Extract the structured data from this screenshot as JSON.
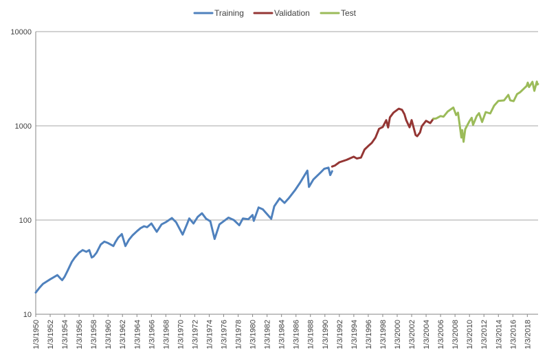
{
  "chart_data": {
    "type": "line",
    "y_scale": "log",
    "ylim": [
      10,
      10000
    ],
    "y_ticks": [
      "10",
      "100",
      "1000",
      "10000"
    ],
    "x_ticks": [
      "1/3/1950",
      "1/3/1952",
      "1/3/1954",
      "1/3/1956",
      "1/3/1958",
      "1/3/1960",
      "1/3/1962",
      "1/3/1964",
      "1/3/1966",
      "1/3/1968",
      "1/3/1970",
      "1/3/1972",
      "1/3/1974",
      "1/3/1976",
      "1/3/1978",
      "1/3/1980",
      "1/3/1982",
      "1/3/1984",
      "1/3/1986",
      "1/3/1988",
      "1/3/1990",
      "1/3/1992",
      "1/3/1994",
      "1/3/1996",
      "1/3/1998",
      "1/3/2000",
      "1/3/2002",
      "1/3/2004",
      "1/3/2006",
      "1/3/2008",
      "1/3/2010",
      "1/3/2012",
      "1/3/2014",
      "1/3/2016",
      "1/3/2018"
    ],
    "xlim": [
      "1950-01-03",
      "2019-06-30"
    ],
    "grid": "horizontal",
    "legend_position": "top-center",
    "series": [
      {
        "name": "Training",
        "color": "#4F81BD",
        "points": [
          [
            "1950-01-03",
            17
          ],
          [
            "1950-07-01",
            19
          ],
          [
            "1951-01-01",
            21
          ],
          [
            "1951-06-01",
            22
          ],
          [
            "1952-01-01",
            23.5
          ],
          [
            "1952-06-01",
            24.5
          ],
          [
            "1953-01-01",
            26
          ],
          [
            "1953-06-01",
            24
          ],
          [
            "1953-09-01",
            23
          ],
          [
            "1954-01-01",
            25
          ],
          [
            "1954-06-01",
            29
          ],
          [
            "1955-01-01",
            36
          ],
          [
            "1955-06-01",
            40
          ],
          [
            "1956-01-01",
            45
          ],
          [
            "1956-07-01",
            48
          ],
          [
            "1957-01-01",
            46
          ],
          [
            "1957-06-01",
            48
          ],
          [
            "1957-10-01",
            40
          ],
          [
            "1958-01-01",
            41
          ],
          [
            "1958-06-01",
            45
          ],
          [
            "1959-01-01",
            55
          ],
          [
            "1959-07-01",
            59
          ],
          [
            "1960-01-01",
            57
          ],
          [
            "1960-10-01",
            53
          ],
          [
            "1961-01-01",
            58
          ],
          [
            "1961-06-01",
            65
          ],
          [
            "1961-12-01",
            71
          ],
          [
            "1962-06-01",
            53
          ],
          [
            "1962-12-01",
            62
          ],
          [
            "1963-06-01",
            69
          ],
          [
            "1964-01-01",
            76
          ],
          [
            "1964-07-01",
            82
          ],
          [
            "1965-01-01",
            86
          ],
          [
            "1965-06-01",
            84
          ],
          [
            "1966-01-01",
            92
          ],
          [
            "1966-10-01",
            75
          ],
          [
            "1967-06-01",
            90
          ],
          [
            "1968-01-01",
            95
          ],
          [
            "1968-11-01",
            105
          ],
          [
            "1969-06-01",
            95
          ],
          [
            "1970-05-01",
            70
          ],
          [
            "1970-12-01",
            90
          ],
          [
            "1971-04-01",
            104
          ],
          [
            "1971-11-01",
            92
          ],
          [
            "1972-06-01",
            108
          ],
          [
            "1973-01-01",
            118
          ],
          [
            "1973-08-01",
            103
          ],
          [
            "1974-03-01",
            97
          ],
          [
            "1974-10-01",
            63
          ],
          [
            "1975-06-01",
            90
          ],
          [
            "1976-01-01",
            97
          ],
          [
            "1976-09-01",
            106
          ],
          [
            "1977-06-01",
            100
          ],
          [
            "1978-03-01",
            88
          ],
          [
            "1978-09-01",
            104
          ],
          [
            "1979-06-01",
            102
          ],
          [
            "1980-01-01",
            113
          ],
          [
            "1980-03-01",
            98
          ],
          [
            "1980-11-01",
            136
          ],
          [
            "1981-06-01",
            130
          ],
          [
            "1982-08-01",
            103
          ],
          [
            "1983-01-01",
            140
          ],
          [
            "1983-10-01",
            170
          ],
          [
            "1984-06-01",
            152
          ],
          [
            "1985-01-01",
            170
          ],
          [
            "1985-12-01",
            210
          ],
          [
            "1986-08-01",
            250
          ],
          [
            "1987-08-01",
            335
          ],
          [
            "1987-10-20",
            225
          ],
          [
            "1988-06-01",
            270
          ],
          [
            "1989-06-01",
            320
          ],
          [
            "1989-12-01",
            350
          ],
          [
            "1990-07-01",
            360
          ],
          [
            "1990-10-01",
            300
          ],
          [
            "1991-01-02",
            330
          ]
        ]
      },
      {
        "name": "Validation",
        "color": "#943634",
        "points": [
          [
            "1991-01-02",
            370
          ],
          [
            "1991-06-01",
            380
          ],
          [
            "1992-01-01",
            410
          ],
          [
            "1993-01-01",
            435
          ],
          [
            "1994-01-01",
            470
          ],
          [
            "1994-06-01",
            450
          ],
          [
            "1995-01-01",
            460
          ],
          [
            "1995-07-01",
            560
          ],
          [
            "1996-01-01",
            610
          ],
          [
            "1996-07-01",
            660
          ],
          [
            "1997-01-01",
            750
          ],
          [
            "1997-07-01",
            930
          ],
          [
            "1998-01-01",
            970
          ],
          [
            "1998-07-01",
            1150
          ],
          [
            "1998-10-01",
            960
          ],
          [
            "1999-01-01",
            1230
          ],
          [
            "1999-07-01",
            1380
          ],
          [
            "2000-03-24",
            1520
          ],
          [
            "2000-09-01",
            1480
          ],
          [
            "2001-01-01",
            1330
          ],
          [
            "2001-04-01",
            1150
          ],
          [
            "2001-09-21",
            965
          ],
          [
            "2002-01-01",
            1150
          ],
          [
            "2002-07-23",
            800
          ],
          [
            "2002-10-09",
            776
          ],
          [
            "2003-03-01",
            850
          ],
          [
            "2003-06-01",
            990
          ],
          [
            "2004-01-01",
            1130
          ],
          [
            "2004-08-01",
            1070
          ],
          [
            "2005-01-03",
            1190
          ]
        ]
      },
      {
        "name": "Test",
        "color": "#9BBB59",
        "points": [
          [
            "2005-01-03",
            1190
          ],
          [
            "2005-06-01",
            1200
          ],
          [
            "2006-01-01",
            1270
          ],
          [
            "2006-06-01",
            1250
          ],
          [
            "2007-01-01",
            1420
          ],
          [
            "2007-10-09",
            1565
          ],
          [
            "2008-03-01",
            1300
          ],
          [
            "2008-06-01",
            1380
          ],
          [
            "2008-11-20",
            752
          ],
          [
            "2009-01-01",
            900
          ],
          [
            "2009-03-09",
            677
          ],
          [
            "2009-06-01",
            920
          ],
          [
            "2010-01-01",
            1120
          ],
          [
            "2010-04-23",
            1217
          ],
          [
            "2010-07-02",
            1022
          ],
          [
            "2011-01-01",
            1270
          ],
          [
            "2011-04-29",
            1363
          ],
          [
            "2011-10-03",
            1099
          ],
          [
            "2012-04-01",
            1400
          ],
          [
            "2012-11-15",
            1353
          ],
          [
            "2013-06-01",
            1640
          ],
          [
            "2014-01-01",
            1840
          ],
          [
            "2014-10-15",
            1862
          ],
          [
            "2015-05-20",
            2130
          ],
          [
            "2015-08-25",
            1867
          ],
          [
            "2016-02-11",
            1829
          ],
          [
            "2016-08-01",
            2170
          ],
          [
            "2017-01-01",
            2270
          ],
          [
            "2017-12-01",
            2650
          ],
          [
            "2018-01-26",
            2873
          ],
          [
            "2018-04-01",
            2580
          ],
          [
            "2018-09-20",
            2930
          ],
          [
            "2018-12-24",
            2351
          ],
          [
            "2019-04-30",
            2945
          ],
          [
            "2019-06-03",
            2744
          ],
          [
            "2019-06-28",
            2780
          ]
        ]
      }
    ]
  }
}
